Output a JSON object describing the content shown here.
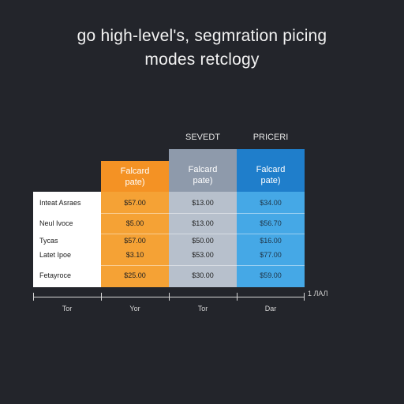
{
  "header": {
    "title_line1": "go high-level's, segmration picing",
    "title_line2": "modes retclogy"
  },
  "plans": [
    {
      "top_label": "",
      "name_line1": "Falcard",
      "name_line2": "pate)",
      "color": "#f49224"
    },
    {
      "top_label": "SEVEDT",
      "name_line1": "Falcard",
      "name_line2": "pate)",
      "color": "#8e9aab"
    },
    {
      "top_label": "PRICERI",
      "name_line1": "Falcard",
      "name_line2": "pate)",
      "color": "#1f7ecb"
    }
  ],
  "body_colors": [
    "#f5a235",
    "#b7c0cc",
    "#45a8e6"
  ],
  "rows": [
    {
      "label": "Inteat Asraes",
      "values": [
        "$57.00",
        "$13.00",
        "$34.00"
      ]
    },
    {
      "label": "Neul Ivoce",
      "values": [
        "$5.00",
        "$13.00",
        "$56.70"
      ]
    },
    {
      "label": "Tycas",
      "values": [
        "$57.00",
        "$50.00",
        "$16.00"
      ]
    },
    {
      "label": "Latet Ipoe",
      "values": [
        "$3.10",
        "$53.00",
        "$77.00"
      ]
    },
    {
      "label": "Fetayroce",
      "values": [
        "$25.00",
        "$30.00",
        "$59.00"
      ]
    }
  ],
  "axis": {
    "end_label": "1 ЛАЛ",
    "labels": [
      "Tor",
      "Yor",
      "Tor",
      "Dar"
    ]
  }
}
